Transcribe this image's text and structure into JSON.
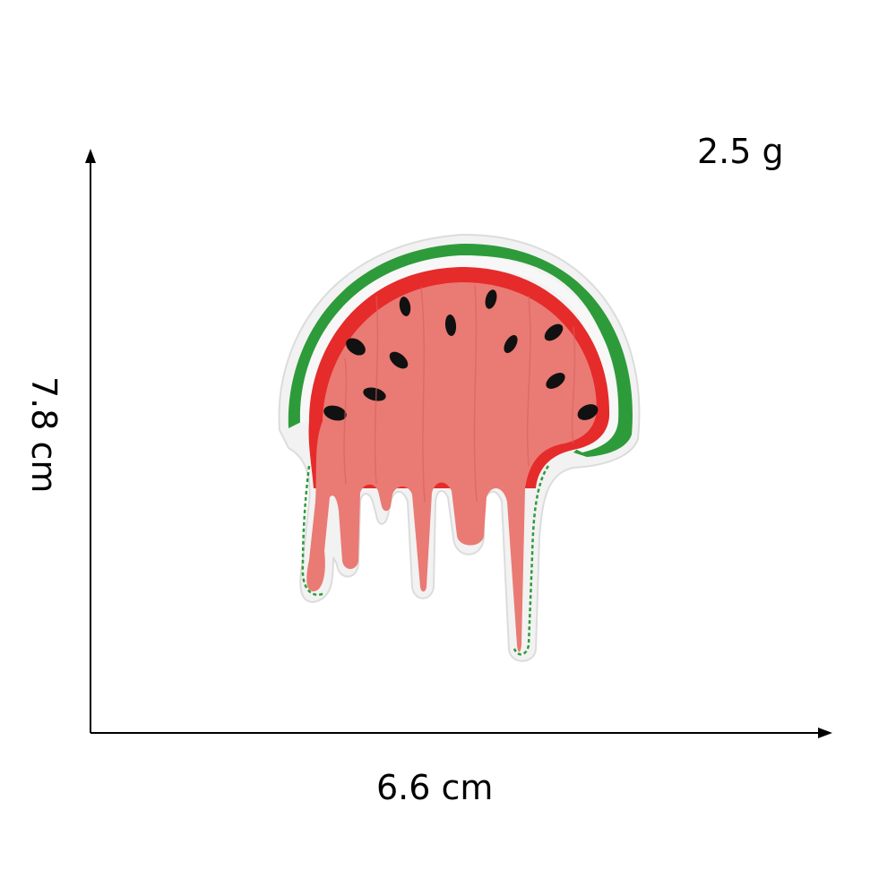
{
  "measurements": {
    "weight": "2.5 g",
    "width": "6.6 cm",
    "height": "7.8 cm"
  },
  "product": {
    "icon": "dripping-watermelon-patch-icon"
  },
  "colors": {
    "rind_green": "#2e9b3a",
    "rind_white": "#f4f4f4",
    "rim_red": "#e62b2b",
    "flesh_pink": "#ea7a74",
    "seed": "#111111",
    "axis": "#000000"
  }
}
